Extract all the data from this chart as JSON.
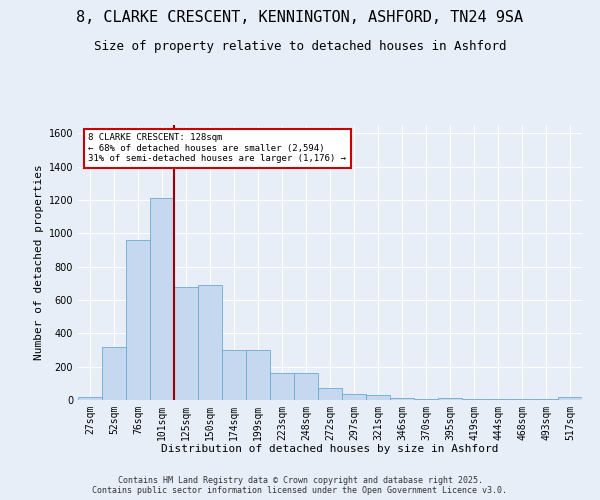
{
  "title_line1": "8, CLARKE CRESCENT, KENNINGTON, ASHFORD, TN24 9SA",
  "title_line2": "Size of property relative to detached houses in Ashford",
  "xlabel": "Distribution of detached houses by size in Ashford",
  "ylabel": "Number of detached properties",
  "categories": [
    "27sqm",
    "52sqm",
    "76sqm",
    "101sqm",
    "125sqm",
    "150sqm",
    "174sqm",
    "199sqm",
    "223sqm",
    "248sqm",
    "272sqm",
    "297sqm",
    "321sqm",
    "346sqm",
    "370sqm",
    "395sqm",
    "419sqm",
    "444sqm",
    "468sqm",
    "493sqm",
    "517sqm"
  ],
  "values": [
    20,
    320,
    960,
    1210,
    680,
    690,
    300,
    300,
    160,
    160,
    75,
    35,
    30,
    15,
    5,
    10,
    5,
    5,
    5,
    5,
    20
  ],
  "bar_color": "#c5d8f0",
  "bar_edge_color": "#6aaad4",
  "background_color": "#e8eef8",
  "grid_color": "#ffffff",
  "vline_index": 3.5,
  "annotation_text": "8 CLARKE CRESCENT: 128sqm\n← 68% of detached houses are smaller (2,594)\n31% of semi-detached houses are larger (1,176) →",
  "annotation_box_color": "#ffffff",
  "annotation_box_edge": "#cc0000",
  "vline_color": "#990000",
  "ylim": [
    0,
    1650
  ],
  "yticks": [
    0,
    200,
    400,
    600,
    800,
    1000,
    1200,
    1400,
    1600
  ],
  "footer": "Contains HM Land Registry data © Crown copyright and database right 2025.\nContains public sector information licensed under the Open Government Licence v3.0.",
  "title_fontsize": 11,
  "subtitle_fontsize": 9,
  "xlabel_fontsize": 8,
  "ylabel_fontsize": 8,
  "tick_fontsize": 7,
  "footer_fontsize": 6
}
